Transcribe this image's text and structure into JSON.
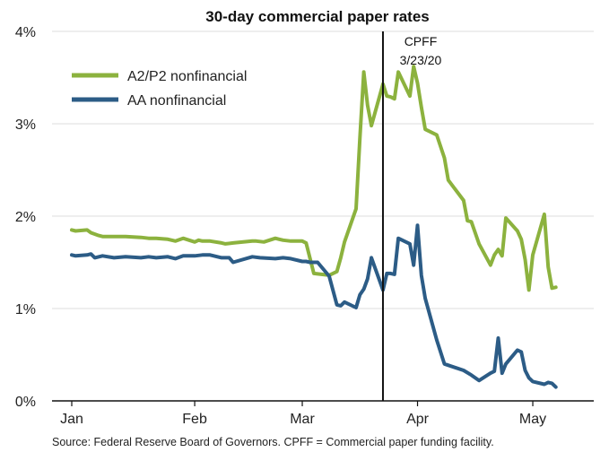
{
  "chart_data": {
    "type": "line",
    "title": "30-day commercial paper rates",
    "xlabel": "",
    "ylabel": "",
    "x_ticks": [
      "Jan",
      "Feb",
      "Mar",
      "Apr",
      "May"
    ],
    "x_tick_dates": [
      "2020-01-02",
      "2020-02-03",
      "2020-03-02",
      "2020-04-01",
      "2020-05-01"
    ],
    "xlim": [
      "2020-01-02",
      "2020-05-15"
    ],
    "ylim": [
      0,
      4
    ],
    "y_ticks": [
      0,
      1,
      2,
      3,
      4
    ],
    "y_tick_labels": [
      "0%",
      "1%",
      "2%",
      "3%",
      "4%"
    ],
    "grid": "horizontal",
    "legend_position": "top-left",
    "annotation": {
      "date": "2020-03-23",
      "lines": [
        "CPFF",
        "3/23/20"
      ]
    },
    "series": [
      {
        "name": "A2/P2 nonfinancial",
        "color": "#8CB23E",
        "x": [
          "2020-01-02",
          "2020-01-03",
          "2020-01-06",
          "2020-01-07",
          "2020-01-09",
          "2020-01-10",
          "2020-01-13",
          "2020-01-16",
          "2020-01-20",
          "2020-01-22",
          "2020-01-23",
          "2020-01-24",
          "2020-01-27",
          "2020-01-29",
          "2020-01-31",
          "2020-02-03",
          "2020-02-04",
          "2020-02-05",
          "2020-02-07",
          "2020-02-10",
          "2020-02-11",
          "2020-02-13",
          "2020-02-18",
          "2020-02-19",
          "2020-02-21",
          "2020-02-24",
          "2020-02-25",
          "2020-02-26",
          "2020-02-28",
          "2020-03-02",
          "2020-03-03",
          "2020-03-05",
          "2020-03-09",
          "2020-03-11",
          "2020-03-12",
          "2020-03-13",
          "2020-03-16",
          "2020-03-17",
          "2020-03-18",
          "2020-03-19",
          "2020-03-20",
          "2020-03-23",
          "2020-03-24",
          "2020-03-25",
          "2020-03-26",
          "2020-03-27",
          "2020-03-30",
          "2020-03-31",
          "2020-04-01",
          "2020-04-02",
          "2020-04-03",
          "2020-04-06",
          "2020-04-08",
          "2020-04-09",
          "2020-04-13",
          "2020-04-14",
          "2020-04-15",
          "2020-04-16",
          "2020-04-17",
          "2020-04-20",
          "2020-04-21",
          "2020-04-22",
          "2020-04-23",
          "2020-04-24",
          "2020-04-27",
          "2020-04-28",
          "2020-04-29",
          "2020-04-30",
          "2020-05-01",
          "2020-05-04",
          "2020-05-05",
          "2020-05-06",
          "2020-05-07"
        ],
        "values": [
          1.85,
          1.84,
          1.85,
          1.82,
          1.79,
          1.78,
          1.78,
          1.78,
          1.77,
          1.76,
          1.76,
          1.76,
          1.75,
          1.73,
          1.76,
          1.72,
          1.74,
          1.73,
          1.73,
          1.71,
          1.7,
          1.71,
          1.73,
          1.73,
          1.72,
          1.76,
          1.75,
          1.74,
          1.73,
          1.73,
          1.71,
          1.38,
          1.36,
          1.4,
          1.55,
          1.72,
          2.08,
          2.85,
          3.56,
          3.2,
          2.98,
          3.43,
          3.3,
          3.29,
          3.27,
          3.56,
          3.3,
          3.62,
          3.44,
          3.18,
          2.94,
          2.88,
          2.63,
          2.39,
          2.17,
          1.95,
          1.94,
          1.82,
          1.7,
          1.47,
          1.58,
          1.64,
          1.57,
          1.98,
          1.84,
          1.75,
          1.53,
          1.2,
          1.58,
          2.02,
          1.45,
          1.22,
          1.23
        ]
      },
      {
        "name": "AA nonfinancial",
        "color": "#2C5C86",
        "x": [
          "2020-01-02",
          "2020-01-03",
          "2020-01-06",
          "2020-01-07",
          "2020-01-08",
          "2020-01-10",
          "2020-01-13",
          "2020-01-16",
          "2020-01-20",
          "2020-01-22",
          "2020-01-24",
          "2020-01-27",
          "2020-01-29",
          "2020-01-31",
          "2020-02-03",
          "2020-02-05",
          "2020-02-07",
          "2020-02-10",
          "2020-02-12",
          "2020-02-13",
          "2020-02-18",
          "2020-02-20",
          "2020-02-24",
          "2020-02-26",
          "2020-02-28",
          "2020-03-02",
          "2020-03-03",
          "2020-03-04",
          "2020-03-06",
          "2020-03-09",
          "2020-03-11",
          "2020-03-12",
          "2020-03-13",
          "2020-03-16",
          "2020-03-17",
          "2020-03-18",
          "2020-03-19",
          "2020-03-20",
          "2020-03-23",
          "2020-03-24",
          "2020-03-25",
          "2020-03-26",
          "2020-03-27",
          "2020-03-30",
          "2020-03-31",
          "2020-04-01",
          "2020-04-02",
          "2020-04-03",
          "2020-04-06",
          "2020-04-08",
          "2020-04-13",
          "2020-04-15",
          "2020-04-17",
          "2020-04-20",
          "2020-04-21",
          "2020-04-22",
          "2020-04-23",
          "2020-04-24",
          "2020-04-27",
          "2020-04-28",
          "2020-04-29",
          "2020-04-30",
          "2020-05-01",
          "2020-05-04",
          "2020-05-05",
          "2020-05-06",
          "2020-05-07"
        ],
        "values": [
          1.58,
          1.57,
          1.58,
          1.59,
          1.55,
          1.57,
          1.55,
          1.56,
          1.55,
          1.56,
          1.55,
          1.56,
          1.54,
          1.57,
          1.57,
          1.58,
          1.58,
          1.55,
          1.55,
          1.5,
          1.56,
          1.55,
          1.54,
          1.55,
          1.54,
          1.51,
          1.51,
          1.5,
          1.5,
          1.35,
          1.04,
          1.03,
          1.07,
          1.01,
          1.15,
          1.21,
          1.32,
          1.55,
          1.2,
          1.38,
          1.38,
          1.37,
          1.76,
          1.7,
          1.47,
          1.9,
          1.36,
          1.11,
          0.66,
          0.4,
          0.33,
          0.28,
          0.22,
          0.3,
          0.32,
          0.68,
          0.3,
          0.4,
          0.55,
          0.53,
          0.33,
          0.25,
          0.21,
          0.18,
          0.2,
          0.19,
          0.15
        ]
      }
    ]
  },
  "source_text": "Source: Federal Reserve Board of Governors. CPFF = Commercial paper funding facility."
}
